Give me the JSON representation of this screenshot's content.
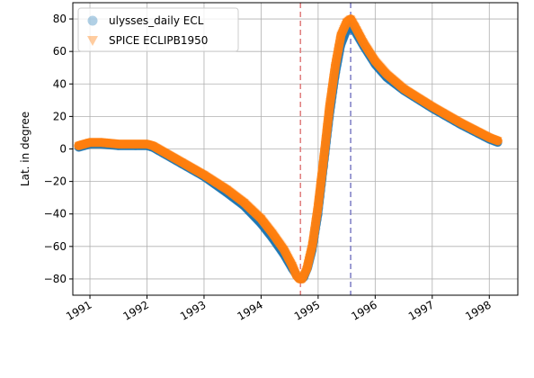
{
  "chart_data": {
    "type": "scatter",
    "title": "",
    "xlabel": "",
    "ylabel": "Lat. in degree",
    "xlim": [
      1990.7,
      1998.5
    ],
    "ylim": [
      -90,
      90
    ],
    "x_ticks": [
      1991,
      1992,
      1993,
      1994,
      1995,
      1996,
      1997,
      1998
    ],
    "y_ticks": [
      -80,
      -60,
      -40,
      -20,
      0,
      20,
      40,
      60,
      80
    ],
    "grid": true,
    "legend_position": "upper-left",
    "vlines": [
      {
        "x": 1994.69,
        "color": "#e07b7b",
        "style": "dashed"
      },
      {
        "x": 1995.57,
        "color": "#7b7bc4",
        "style": "dashed"
      }
    ],
    "series": [
      {
        "name": "ulysses_daily ECL",
        "marker": "circle",
        "color": "#1f77b4",
        "x": [
          1990.8,
          1990.9,
          1991.0,
          1991.2,
          1991.5,
          1991.8,
          1992.0,
          1992.1,
          1992.3,
          1992.6,
          1993.0,
          1993.4,
          1993.7,
          1994.0,
          1994.2,
          1994.4,
          1994.55,
          1994.65,
          1994.7,
          1994.75,
          1994.82,
          1994.9,
          1995.0,
          1995.1,
          1995.2,
          1995.3,
          1995.4,
          1995.5,
          1995.57,
          1995.65,
          1995.8,
          1996.0,
          1996.2,
          1996.5,
          1997.0,
          1997.5,
          1998.0,
          1998.15
        ],
        "y": [
          1,
          2,
          3,
          3,
          2,
          2,
          2,
          1,
          -3,
          -9,
          -17,
          -27,
          -35,
          -46,
          -55,
          -65,
          -74,
          -79,
          -80,
          -79,
          -73,
          -62,
          -40,
          -10,
          20,
          45,
          64,
          73,
          76,
          72,
          63,
          52,
          44,
          36,
          25,
          15,
          6,
          4
        ]
      },
      {
        "name": "SPICE ECLIPB1950",
        "marker": "triangle-down",
        "color": "#ff7f0e",
        "x": [
          1990.8,
          1990.9,
          1991.0,
          1991.2,
          1991.5,
          1991.8,
          1992.0,
          1992.1,
          1992.3,
          1992.6,
          1993.0,
          1993.4,
          1993.7,
          1994.0,
          1994.2,
          1994.4,
          1994.55,
          1994.62,
          1994.67,
          1994.72,
          1994.8,
          1994.9,
          1995.0,
          1995.1,
          1995.2,
          1995.3,
          1995.4,
          1995.5,
          1995.57,
          1995.65,
          1995.8,
          1996.0,
          1996.2,
          1996.5,
          1997.0,
          1997.5,
          1998.0,
          1998.15
        ],
        "y": [
          2,
          3,
          4,
          4,
          3,
          3,
          3,
          2,
          -2,
          -8,
          -16,
          -25,
          -33,
          -43,
          -52,
          -62,
          -72,
          -78,
          -80,
          -80,
          -74,
          -59,
          -35,
          -5,
          26,
          51,
          70,
          78,
          80,
          75,
          65,
          54,
          46,
          37,
          26,
          16,
          7,
          5
        ]
      }
    ]
  }
}
